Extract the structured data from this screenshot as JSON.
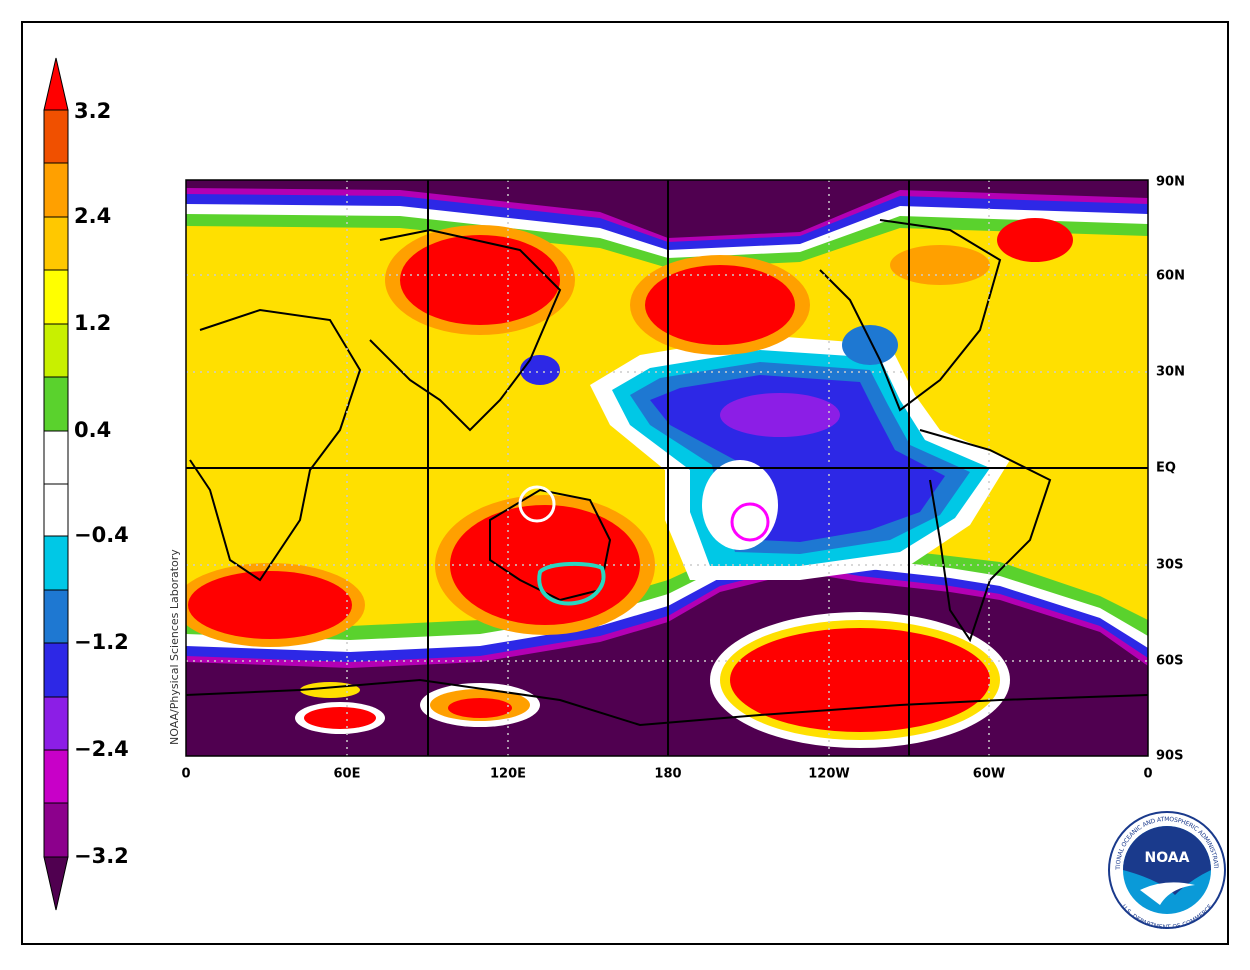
{
  "colorbar": {
    "labels": [
      "3.2",
      "2.4",
      "1.2",
      "0.4",
      "−0.4",
      "−1.2",
      "−2.4",
      "−3.2"
    ]
  },
  "map": {
    "credit": "NOAA/Physical Sciences Laboratory",
    "lon_labels": [
      "0",
      "60E",
      "120E",
      "180",
      "120W",
      "60W",
      "0"
    ],
    "lat_labels": [
      "90N",
      "60N",
      "30N",
      "EQ",
      "30S",
      "60S",
      "90S"
    ]
  },
  "logo": {
    "name": "NOAA",
    "ring_top": "NATIONAL OCEANIC AND ATMOSPHERIC ADMINISTRATION",
    "ring_bottom": "U.S. DEPARTMENT OF COMMERCE"
  }
}
